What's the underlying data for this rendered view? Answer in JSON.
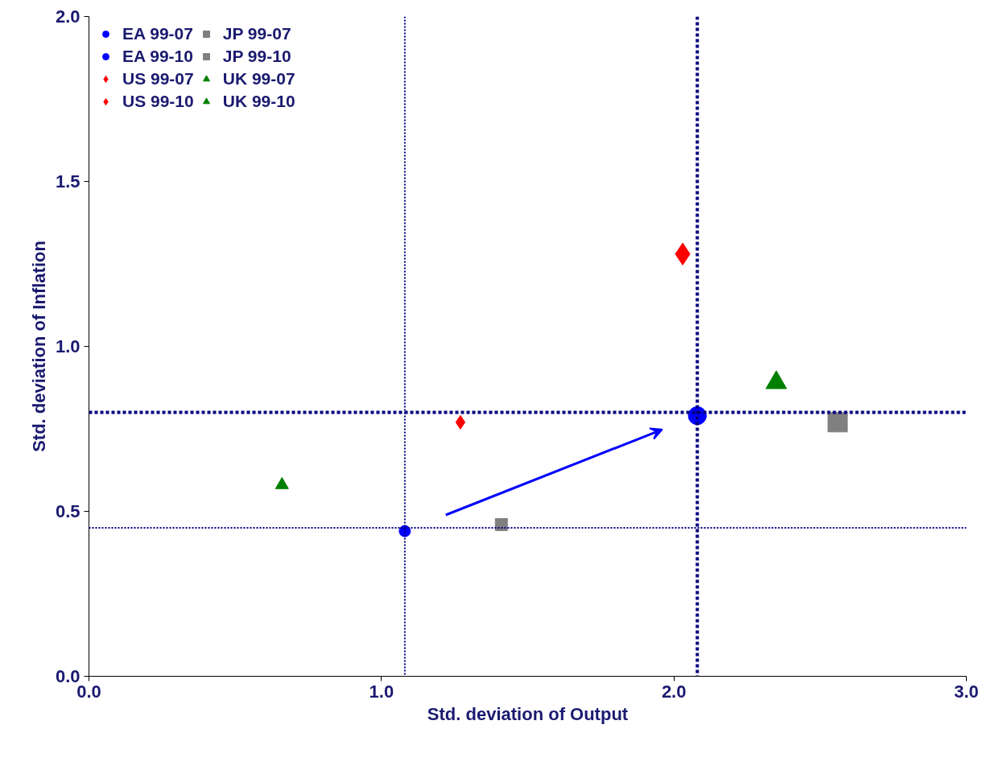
{
  "chart_data": {
    "type": "scatter",
    "xlabel": "Std. deviation of Output",
    "ylabel": "Std. deviation of Inflation",
    "xlim": [
      0,
      3
    ],
    "xticks": [
      {
        "value": 0,
        "label": "0.0"
      },
      {
        "value": 1,
        "label": "1.0"
      },
      {
        "value": 2,
        "label": "2.0"
      },
      {
        "value": 3,
        "label": "3.0"
      }
    ],
    "ylim": [
      0,
      2
    ],
    "yticks": [
      {
        "value": 0,
        "label": "0.0"
      },
      {
        "value": 0.5,
        "label": "0.5"
      },
      {
        "value": 1,
        "label": "1.0"
      },
      {
        "value": 1.5,
        "label": "1.5"
      },
      {
        "value": 2,
        "label": "2.0"
      }
    ],
    "grid": false,
    "legend": "top left",
    "series": [
      {
        "name": "EA 99-07",
        "color": "#0000ff",
        "marker": "circle",
        "x": [
          1.08
        ],
        "values": [
          0.44
        ]
      },
      {
        "name": "EA 99-10",
        "color": "#0000ff",
        "marker": "circle",
        "x": [
          2.08
        ],
        "values": [
          0.79
        ]
      },
      {
        "name": "US 99-07",
        "color": "#ff0000",
        "marker": "diamond",
        "x": [
          1.27
        ],
        "values": [
          0.77
        ]
      },
      {
        "name": "US 99-10",
        "color": "#ff0000",
        "marker": "diamond",
        "x": [
          2.03
        ],
        "values": [
          1.28
        ]
      },
      {
        "name": "JP 99-07",
        "color": "#808080",
        "marker": "square",
        "x": [
          1.41
        ],
        "values": [
          0.46
        ]
      },
      {
        "name": "JP 99-10",
        "color": "#808080",
        "marker": "square",
        "x": [
          2.56
        ],
        "values": [
          0.77
        ]
      },
      {
        "name": "UK 99-07",
        "color": "#008000",
        "marker": "triangle",
        "x": [
          0.66
        ],
        "values": [
          0.58
        ]
      },
      {
        "name": "UK 99-10",
        "color": "#008000",
        "marker": "triangle",
        "x": [
          2.35
        ],
        "values": [
          0.89
        ]
      }
    ],
    "ref_lines": [
      {
        "axis": "x",
        "value": 1.08,
        "color": "#000080",
        "line_style": "dotted"
      },
      {
        "axis": "x",
        "value": 2.08,
        "color": "#000080",
        "line_style": "dashed"
      },
      {
        "axis": "y",
        "value": 0.8,
        "color": "#000080",
        "line_style": "dashed"
      },
      {
        "axis": "y",
        "value": 0.45,
        "color": "#000080",
        "line_style": "dotted"
      }
    ]
  }
}
